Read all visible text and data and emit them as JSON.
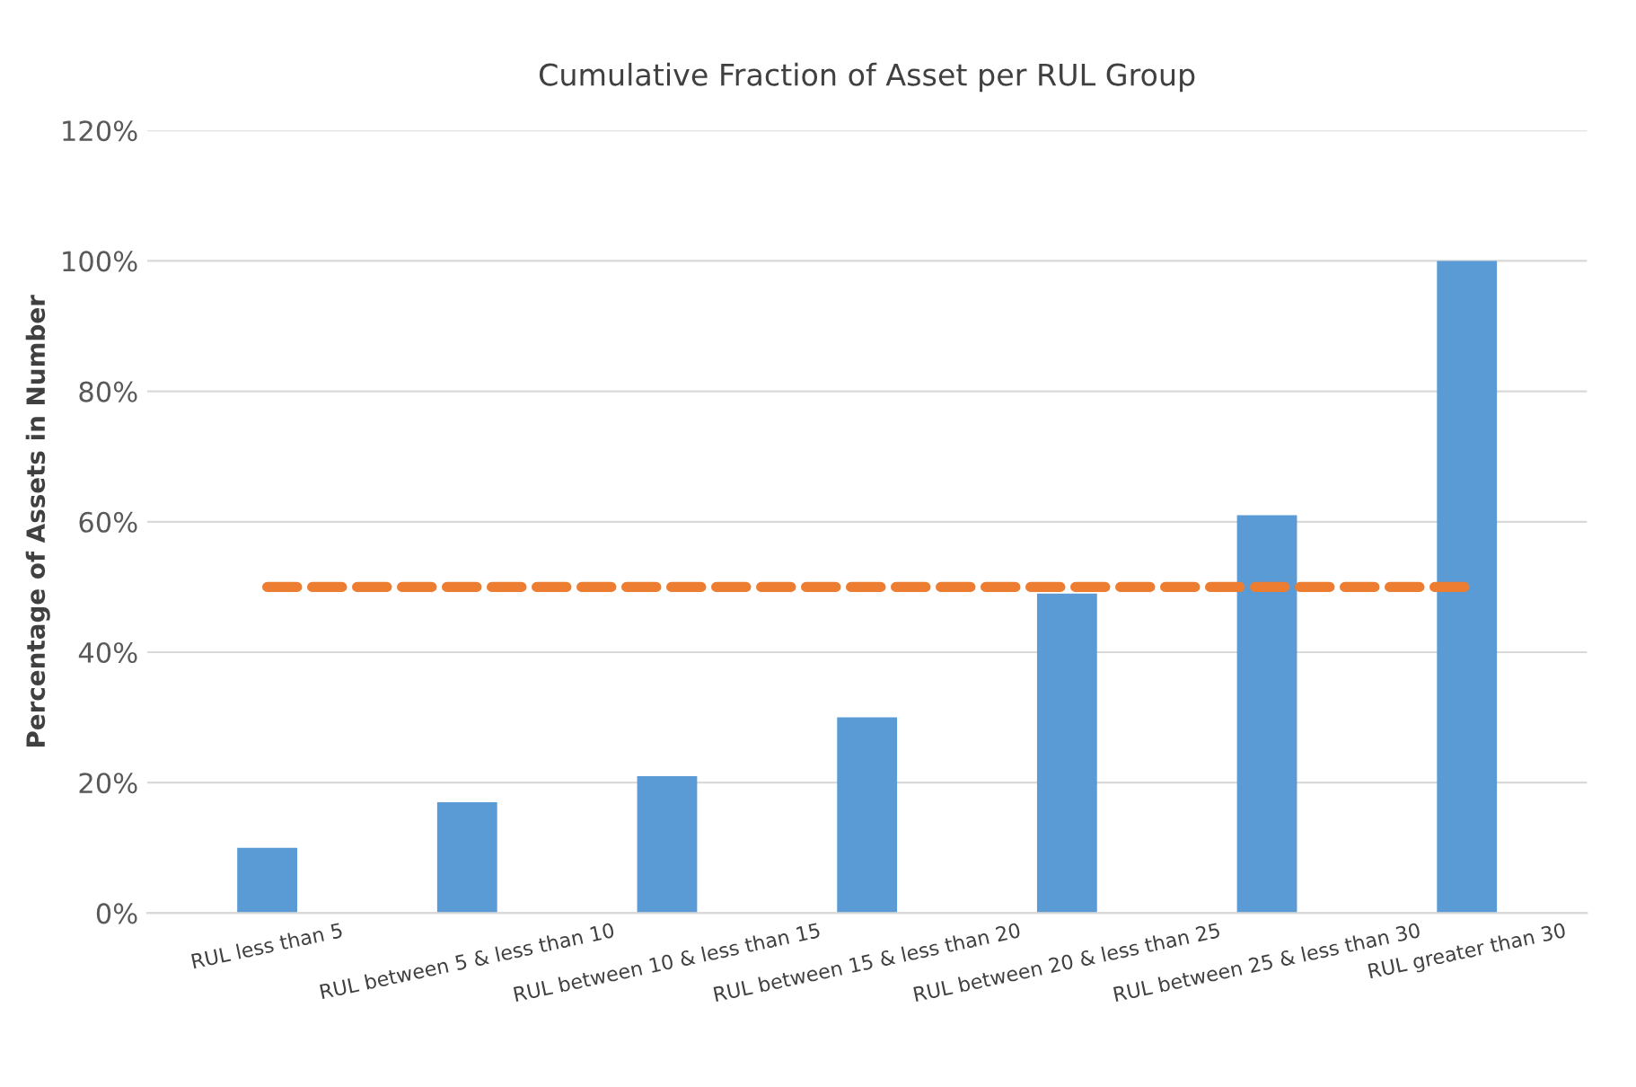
{
  "chart_data": {
    "type": "bar",
    "title": "Cumulative Fraction of Asset per RUL Group",
    "ylabel": "Percentage of Assets in Number",
    "categories": [
      "RUL less than 5",
      "RUL between 5 & less than 10",
      "RUL between 10 & less than 15",
      "RUL between 15 & less than 20",
      "RUL between 20 & less than 25",
      "RUL between 25 & less than 30",
      "RUL greater than 30"
    ],
    "series": [
      {
        "color": "#5b9bd5",
        "values": [
          10,
          17,
          21,
          30,
          49,
          61,
          100
        ]
      },
      {
        "type": "line",
        "color": "#ed7d31",
        "line_style": "dashed",
        "values": [
          50,
          50,
          50,
          50,
          50,
          50,
          50
        ]
      }
    ],
    "ylim": [
      0,
      120
    ],
    "yticks": [
      {
        "value": 0,
        "label": "0%"
      },
      {
        "value": 20,
        "label": "20%"
      },
      {
        "value": 40,
        "label": "40%"
      },
      {
        "value": 60,
        "label": "60%"
      },
      {
        "value": 80,
        "label": "80%"
      },
      {
        "value": 100,
        "label": "100%"
      },
      {
        "value": 120,
        "label": "120%"
      }
    ],
    "grid": "y",
    "legend": false
  }
}
